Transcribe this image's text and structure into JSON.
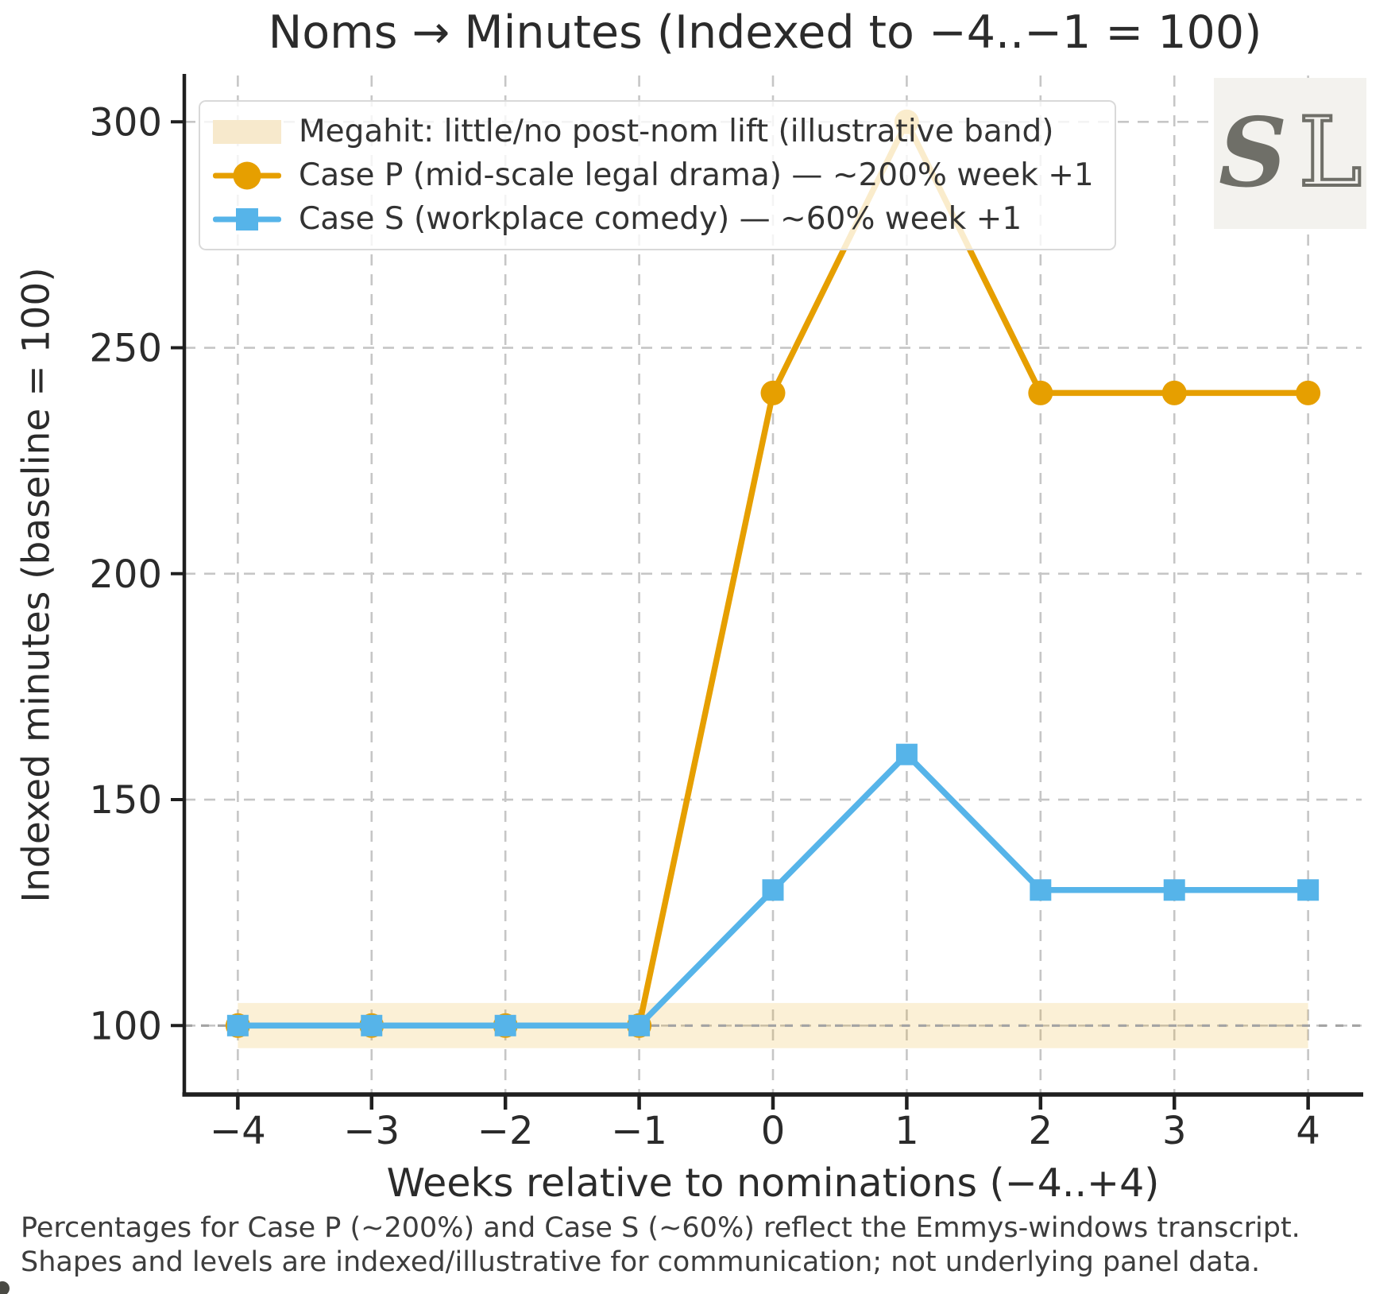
{
  "watermark": {
    "s": "S",
    "l": "L"
  },
  "footnote": {
    "line1": "Percentages for Case P (~200%) and Case S (~60%) reflect the Emmys-windows transcript.",
    "line2": "Shapes and levels are indexed/illustrative for communication; not underlying panel data."
  },
  "chart_data": {
    "type": "line",
    "title": "Noms → Minutes (Indexed to −4..−1 = 100)",
    "xlabel": "Weeks relative to nominations (−4..+4)",
    "ylabel": "Indexed minutes (baseline = 100)",
    "x": [
      -4,
      -3,
      -2,
      -1,
      0,
      1,
      2,
      3,
      4
    ],
    "xtick_labels": [
      "−4",
      "−3",
      "−2",
      "−1",
      "0",
      "1",
      "2",
      "3",
      "4"
    ],
    "yticks": [
      100,
      150,
      200,
      250,
      300
    ],
    "ytick_labels": [
      "100",
      "150",
      "200",
      "250",
      "300"
    ],
    "xlim": [
      -4.4,
      4.4
    ],
    "ylim": [
      84.75,
      310.25
    ],
    "grid": true,
    "legend_position": "upper left",
    "band": {
      "label": "Megahit: little/no post-nom lift (illustrative band)",
      "x_min": -4,
      "x_max": 4,
      "y_min": 95,
      "y_max": 105,
      "color": "rgba(230,159,0,0.16)",
      "legend_swatch_color": "#f7e9cc"
    },
    "baseline": {
      "y": 100,
      "style": "dashed",
      "color": "#a3a3a3"
    },
    "series": [
      {
        "name": "Case P (mid-scale legal drama) — ~200% week +1",
        "color": "#E69F00",
        "marker": "circle",
        "values": [
          100,
          100,
          100,
          100,
          240,
          300,
          240,
          240,
          240
        ]
      },
      {
        "name": "Case S (workplace comedy) — ~60% week +1",
        "color": "#56B4E9",
        "marker": "square",
        "values": [
          100,
          100,
          100,
          100,
          130,
          160,
          130,
          130,
          130
        ]
      }
    ],
    "style": {
      "grid_color": "#c6c6c6",
      "spine_color": "#1f1f1f",
      "tick_label_color": "#2b2b2b",
      "line_width": 7.5
    }
  }
}
